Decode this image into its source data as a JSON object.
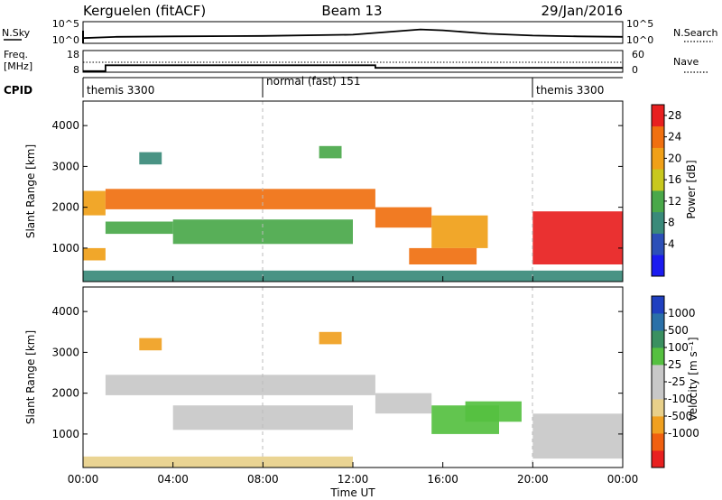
{
  "header": {
    "station": "Kerguelen (fitACF)",
    "beam": "Beam 13",
    "date": "29/Jan/2016"
  },
  "noise_panel": {
    "left_label": "N.Sky",
    "left_ticks": [
      "10^5",
      "10^0"
    ],
    "right_ticks": [
      "10^5",
      "10^0"
    ],
    "right_label": "N.Search"
  },
  "freq_panel": {
    "left_label_1": "Freq.",
    "left_label_2": "[MHz]",
    "left_ticks": [
      "18",
      "8"
    ],
    "right_ticks": [
      "60",
      "0"
    ],
    "right_label": "Nave"
  },
  "cpid_panel": {
    "label": "CPID",
    "segments": [
      {
        "name": "themis 3300",
        "start_hour": 0
      },
      {
        "name": "normal (fast) 151",
        "start_hour": 8
      },
      {
        "name": "themis 3300",
        "start_hour": 20
      }
    ]
  },
  "time_axis": {
    "ticks": [
      "00:00",
      "04:00",
      "08:00",
      "12:00",
      "16:00",
      "20:00",
      "00:00"
    ],
    "label": "Time UT"
  },
  "power_panel": {
    "ylabel": "Slant Range [km]",
    "yticks": [
      "1000",
      "2000",
      "3000",
      "4000"
    ],
    "colorbar_label": "Power [dB]",
    "colorbar_ticks": [
      "4",
      "8",
      "12",
      "16",
      "20",
      "24",
      "28"
    ],
    "colorbar_colors": [
      "#1b1bf0",
      "#2c4fb8",
      "#3a8a7a",
      "#4aa84a",
      "#c8c81e",
      "#f0a018",
      "#f07010",
      "#e82020"
    ]
  },
  "velocity_panel": {
    "ylabel": "Slant Range [km]",
    "yticks": [
      "1000",
      "2000",
      "3000",
      "4000"
    ],
    "colorbar_label": "Velocity [m s⁻¹]",
    "colorbar_ticks": [
      "-1000",
      "-500",
      "-100",
      "-25",
      "25",
      "100",
      "500",
      "1000"
    ],
    "colorbar_colors": [
      "#e82020",
      "#f06010",
      "#f0a020",
      "#e8d08a",
      "#c8c8c8",
      "#c8c8c8",
      "#55c040",
      "#3a9060",
      "#2a70a8",
      "#2040c0"
    ]
  },
  "chart_data": {
    "type": "heatmap",
    "x_unit": "hours UT",
    "x_range": [
      0,
      24
    ],
    "y_range_km": [
      180,
      4600
    ],
    "noise_sky_curve": [
      [
        0,
        1.2
      ],
      [
        1.5,
        1.5
      ],
      [
        4,
        1.6
      ],
      [
        8,
        1.7
      ],
      [
        12,
        2.0
      ],
      [
        13.5,
        2.6
      ],
      [
        15,
        3.2
      ],
      [
        16,
        3.0
      ],
      [
        18,
        2.2
      ],
      [
        20,
        1.8
      ],
      [
        22,
        1.6
      ],
      [
        24,
        1.5
      ]
    ],
    "frequency_steps": [
      [
        0,
        8.5
      ],
      [
        1,
        11.2
      ],
      [
        13,
        10.0
      ],
      [
        24,
        10.0
      ]
    ],
    "power_regions": [
      {
        "t0": 0.0,
        "t1": 1.0,
        "r0": 1800,
        "r1": 2400,
        "value_db": 20
      },
      {
        "t0": 0.0,
        "t1": 1.0,
        "r0": 700,
        "r1": 1000,
        "value_db": 20
      },
      {
        "t0": 1.0,
        "t1": 13.0,
        "r0": 1950,
        "r1": 2450,
        "value_db": 26
      },
      {
        "t0": 1.0,
        "t1": 4.0,
        "r0": 1350,
        "r1": 1650,
        "value_db": 12
      },
      {
        "t0": 4.0,
        "t1": 12.0,
        "r0": 1100,
        "r1": 1700,
        "value_db": 14
      },
      {
        "t0": 13.0,
        "t1": 15.5,
        "r0": 1500,
        "r1": 2000,
        "value_db": 24
      },
      {
        "t0": 15.5,
        "t1": 18.0,
        "r0": 1000,
        "r1": 1800,
        "value_db": 20
      },
      {
        "t0": 14.5,
        "t1": 17.5,
        "r0": 600,
        "r1": 1000,
        "value_db": 26
      },
      {
        "t0": 20.0,
        "t1": 24.0,
        "r0": 600,
        "r1": 1900,
        "value_db": 28
      },
      {
        "t0": 0.0,
        "t1": 24.0,
        "r0": 180,
        "r1": 450,
        "value_db": 10
      },
      {
        "t0": 2.5,
        "t1": 3.5,
        "r0": 3050,
        "r1": 3350,
        "value_db": 8
      },
      {
        "t0": 10.5,
        "t1": 11.5,
        "r0": 3200,
        "r1": 3500,
        "value_db": 12
      }
    ],
    "velocity_regions": [
      {
        "t0": 1.0,
        "t1": 13.0,
        "r0": 1950,
        "r1": 2450,
        "value_ms": 0
      },
      {
        "t0": 4.0,
        "t1": 12.0,
        "r0": 1100,
        "r1": 1700,
        "value_ms": 0
      },
      {
        "t0": 13.0,
        "t1": 15.5,
        "r0": 1500,
        "r1": 2000,
        "value_ms": 0
      },
      {
        "t0": 15.5,
        "t1": 18.5,
        "r0": 1000,
        "r1": 1700,
        "value_ms": 150
      },
      {
        "t0": 17.0,
        "t1": 19.5,
        "r0": 1300,
        "r1": 1800,
        "value_ms": 300
      },
      {
        "t0": 20.0,
        "t1": 24.0,
        "r0": 400,
        "r1": 1500,
        "value_ms": 0
      },
      {
        "t0": 2.5,
        "t1": 3.5,
        "r0": 3050,
        "r1": 3350,
        "value_ms": -300
      },
      {
        "t0": 10.5,
        "t1": 11.5,
        "r0": 3200,
        "r1": 3500,
        "value_ms": -300
      },
      {
        "t0": 0.0,
        "t1": 12.0,
        "r0": 180,
        "r1": 450,
        "value_ms": -50
      }
    ]
  }
}
